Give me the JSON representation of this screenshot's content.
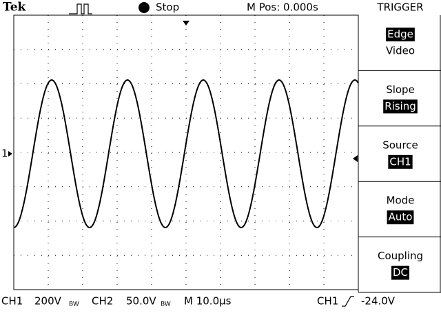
{
  "header": {
    "brand": "Tek",
    "status": "Stop",
    "position": "M Pos: 0.000s",
    "menu_title": "TRIGGER"
  },
  "menu": [
    {
      "lines": [
        "Edge",
        "Video"
      ],
      "highlight": 0
    },
    {
      "lines": [
        "Slope",
        "Rising"
      ],
      "highlight": 1
    },
    {
      "lines": [
        "Source",
        "CH1"
      ],
      "highlight": 1
    },
    {
      "lines": [
        "Mode",
        "Auto"
      ],
      "highlight": 1
    },
    {
      "lines": [
        "Coupling",
        "DC"
      ],
      "highlight": 1
    }
  ],
  "channel_marker": "1",
  "footer": {
    "ch1_label": "CH1",
    "ch1_scale": "200V",
    "ch1_bw": "BW",
    "ch2_label": "CH2",
    "ch2_scale": "50.0V",
    "ch2_bw": "BW",
    "timebase": "M 10.0µs",
    "trigger_source": "CH1",
    "trigger_level": "-24.0V"
  }
}
